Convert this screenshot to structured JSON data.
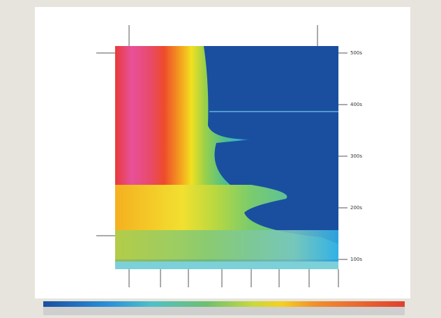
{
  "right_axis": {
    "labels": [
      "500s",
      "400s",
      "300s",
      "200s",
      "100s"
    ]
  }
}
